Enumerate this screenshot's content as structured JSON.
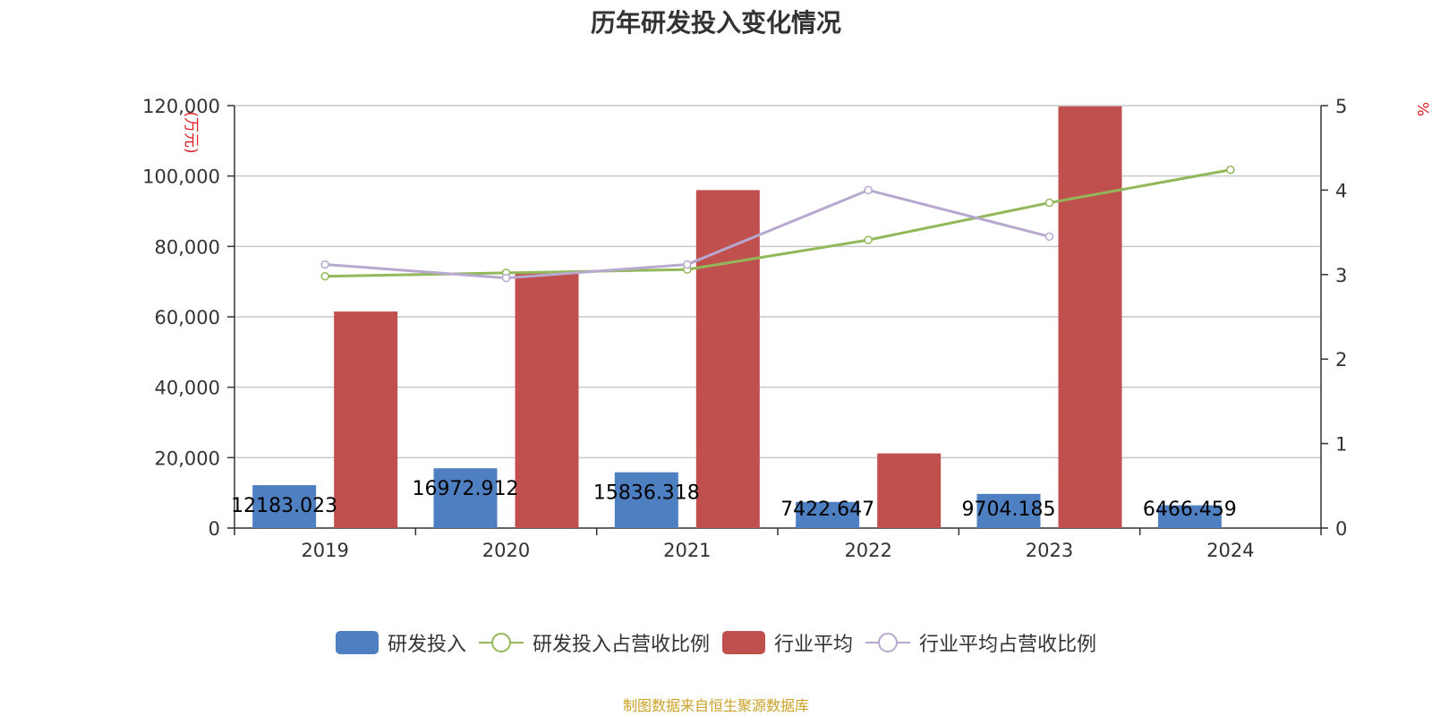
{
  "chart_data": {
    "type": "bar",
    "title": "历年研发投入变化情况",
    "categories": [
      "2019",
      "2020",
      "2021",
      "2022",
      "2023",
      "2024"
    ],
    "left_axis": {
      "unit": "(万元)",
      "ylim": [
        0,
        120000
      ],
      "ticks": [
        "0",
        "20,000",
        "40,000",
        "60,000",
        "80,000",
        "100,000",
        "120,000"
      ]
    },
    "right_axis": {
      "unit": "%",
      "ylim": [
        0,
        5
      ],
      "ticks": [
        "0",
        "1",
        "2",
        "3",
        "4",
        "5"
      ]
    },
    "series": [
      {
        "name": "研发投入",
        "type": "bar",
        "axis": "left",
        "color": "#4e7fc1",
        "values": [
          12183.023,
          16972.912,
          15836.318,
          7422.647,
          9704.185,
          6466.459
        ],
        "labels": [
          "12183.023",
          "16972.912",
          "15836.318",
          "7422.647",
          "9704.185",
          "6466.459"
        ]
      },
      {
        "name": "研发投入占营收比例",
        "type": "line",
        "axis": "right",
        "color": "#93b85a",
        "values": [
          2.98,
          3.02,
          3.06,
          3.41,
          3.85,
          4.24
        ]
      },
      {
        "name": "行业平均",
        "type": "bar",
        "axis": "left",
        "color": "#c0504d",
        "values": [
          61500,
          72500,
          96000,
          21200,
          119800,
          null
        ]
      },
      {
        "name": "行业平均占营收比例",
        "type": "line",
        "axis": "right",
        "color": "#b7a8d0",
        "values": [
          3.12,
          2.96,
          3.12,
          4.0,
          3.45,
          null
        ]
      }
    ],
    "grid": true,
    "legend_position": "bottom"
  },
  "source_note": "制图数据来自恒生聚源数据库"
}
